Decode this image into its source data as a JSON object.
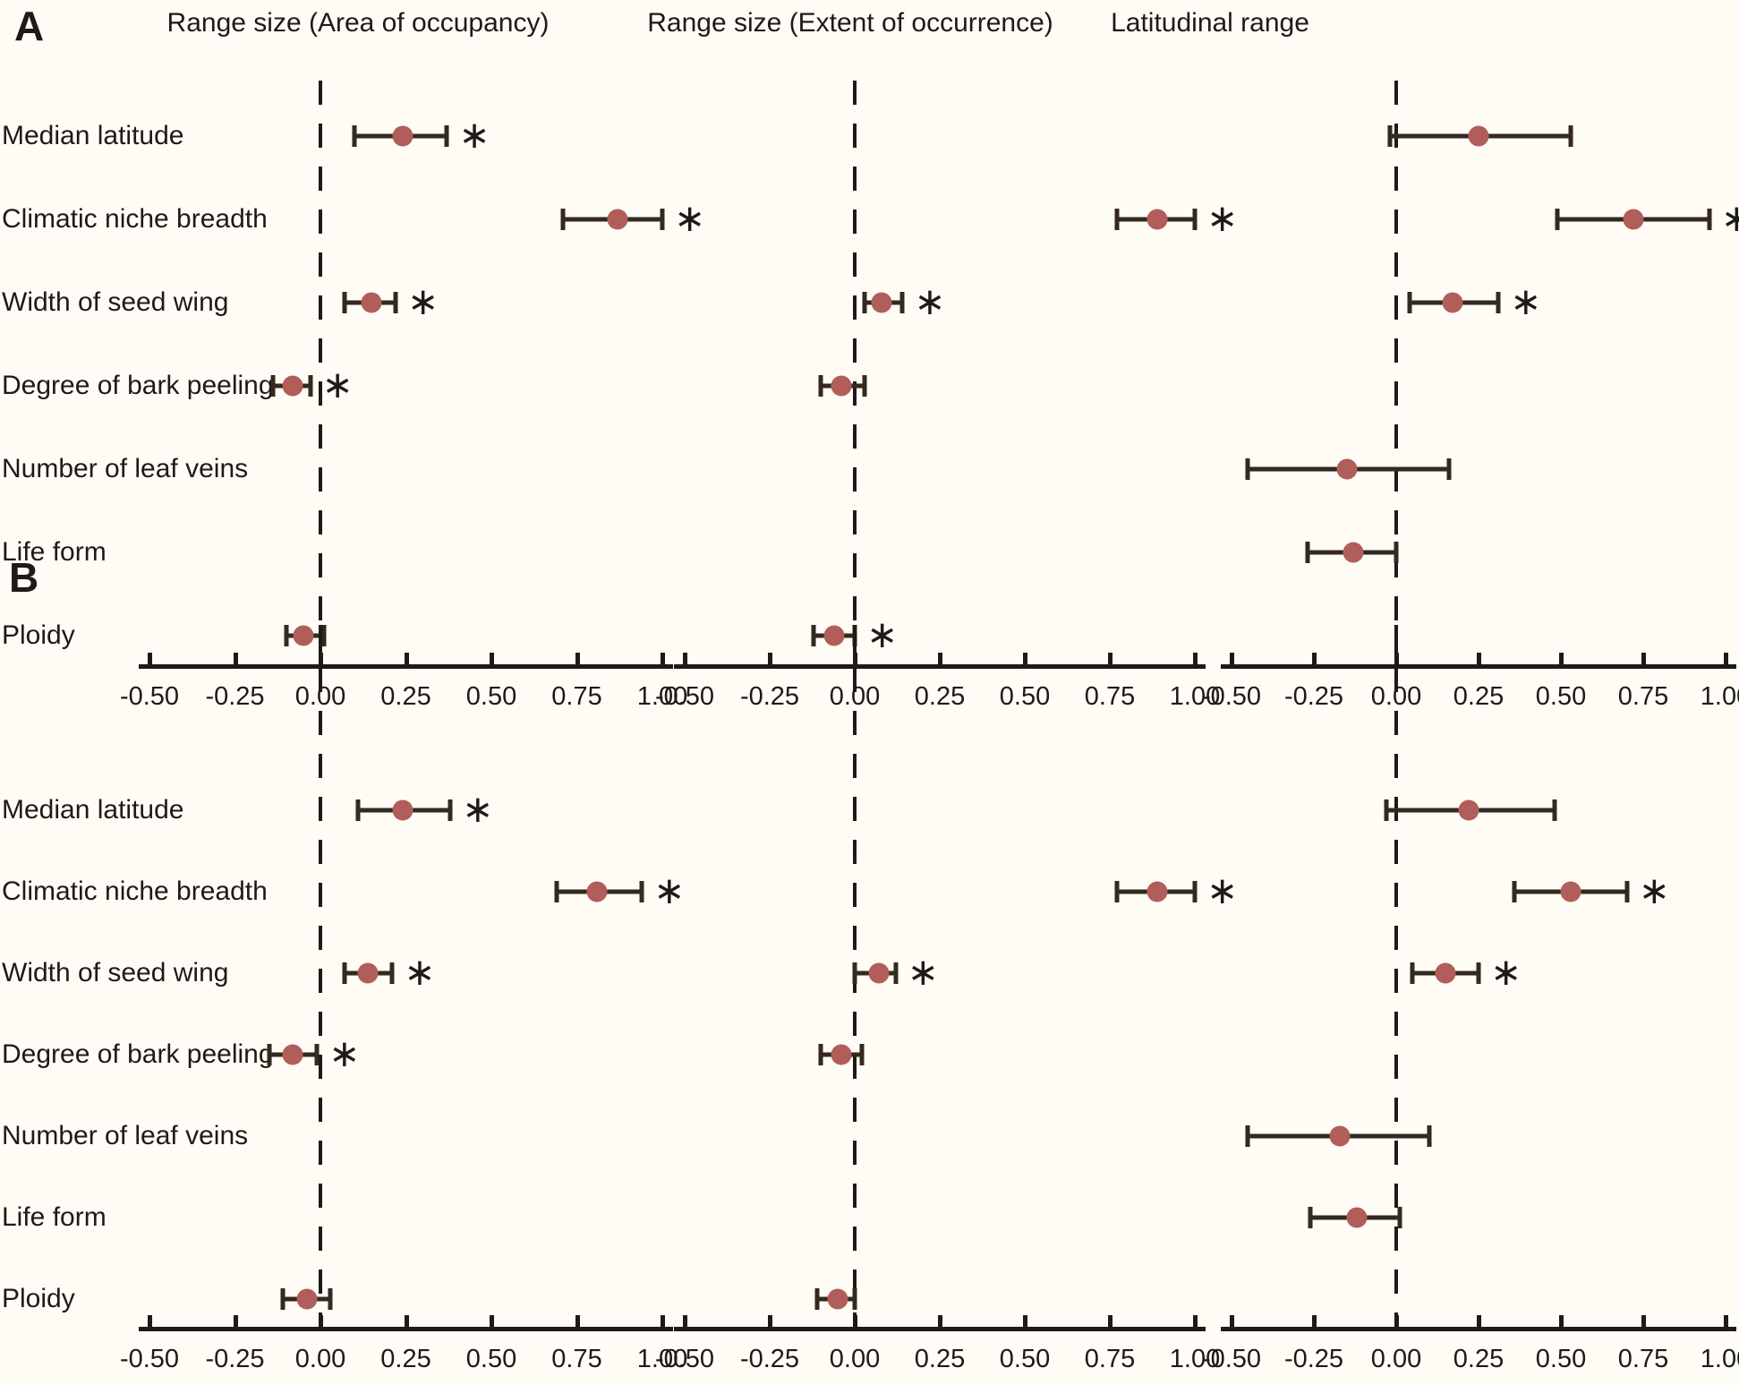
{
  "chart_data": {
    "type": "scatter",
    "subtype": "forest-plot-dot-whisker",
    "description": "Phylogenetic regression coefficient estimates (dots) with confidence-interval whiskers against a dashed zero line; asterisks mark significant effects",
    "title_row": [
      "Range size (Area of occupancy)",
      "Range size (Extent of occurrence)",
      "Latitudinal range"
    ],
    "rows": [
      "Median latitude",
      "Climatic niche breadth",
      "Width of seed wing",
      "Degree of bark peeling",
      "Number of leaf veins",
      "Life form",
      "Ploidy"
    ],
    "axis": {
      "min": -0.5,
      "max": 1.0,
      "tick_labels": [
        "-0.50",
        "-0.25",
        "0.00",
        "0.25",
        "0.50",
        "0.75",
        "1.00"
      ],
      "zero_line": 0.0,
      "grid": false
    },
    "significance_marker": "∗",
    "panels": [
      {
        "label": "A",
        "series": [
          [
            {
              "est": 0.24,
              "lo": 0.1,
              "hi": 0.37,
              "sig": true
            },
            {
              "est": 0.87,
              "lo": 0.71,
              "hi": 1.0,
              "sig": true
            },
            {
              "est": 0.15,
              "lo": 0.07,
              "hi": 0.22,
              "sig": true
            },
            {
              "est": -0.08,
              "lo": -0.14,
              "hi": -0.03,
              "sig": true
            },
            null,
            null,
            {
              "est": -0.05,
              "lo": -0.1,
              "hi": 0.01,
              "sig": false
            }
          ],
          [
            null,
            {
              "est": 0.89,
              "lo": 0.77,
              "hi": 1.0,
              "sig": true
            },
            {
              "est": 0.08,
              "lo": 0.03,
              "hi": 0.14,
              "sig": true
            },
            {
              "est": -0.04,
              "lo": -0.1,
              "hi": 0.03,
              "sig": false
            },
            null,
            null,
            {
              "est": -0.06,
              "lo": -0.12,
              "hi": 0.0,
              "sig": true
            }
          ],
          [
            {
              "est": 0.25,
              "lo": -0.02,
              "hi": 0.53,
              "sig": false
            },
            {
              "est": 0.72,
              "lo": 0.49,
              "hi": 0.95,
              "sig": true
            },
            {
              "est": 0.17,
              "lo": 0.04,
              "hi": 0.31,
              "sig": true
            },
            null,
            {
              "est": -0.15,
              "lo": -0.45,
              "hi": 0.16,
              "sig": false
            },
            {
              "est": -0.13,
              "lo": -0.27,
              "hi": 0.0,
              "sig": false
            },
            null
          ]
        ]
      },
      {
        "label": "B",
        "series": [
          [
            {
              "est": 0.24,
              "lo": 0.11,
              "hi": 0.38,
              "sig": true
            },
            {
              "est": 0.81,
              "lo": 0.69,
              "hi": 0.94,
              "sig": true
            },
            {
              "est": 0.14,
              "lo": 0.07,
              "hi": 0.21,
              "sig": true
            },
            {
              "est": -0.08,
              "lo": -0.15,
              "hi": -0.01,
              "sig": true
            },
            null,
            null,
            {
              "est": -0.04,
              "lo": -0.11,
              "hi": 0.03,
              "sig": false
            }
          ],
          [
            null,
            {
              "est": 0.89,
              "lo": 0.77,
              "hi": 1.0,
              "sig": true
            },
            {
              "est": 0.07,
              "lo": 0.0,
              "hi": 0.12,
              "sig": true
            },
            {
              "est": -0.04,
              "lo": -0.1,
              "hi": 0.02,
              "sig": false
            },
            null,
            null,
            {
              "est": -0.05,
              "lo": -0.11,
              "hi": 0.0,
              "sig": false
            }
          ],
          [
            {
              "est": 0.22,
              "lo": -0.03,
              "hi": 0.48,
              "sig": false
            },
            {
              "est": 0.53,
              "lo": 0.36,
              "hi": 0.7,
              "sig": true
            },
            {
              "est": 0.15,
              "lo": 0.05,
              "hi": 0.25,
              "sig": true
            },
            null,
            {
              "est": -0.17,
              "lo": -0.45,
              "hi": 0.1,
              "sig": false
            },
            {
              "est": -0.12,
              "lo": -0.26,
              "hi": 0.01,
              "sig": false
            },
            null
          ]
        ]
      }
    ],
    "colors": {
      "point": "#b15d59",
      "whisker": "#33291f",
      "axis_and_text": "#1d1a17",
      "background": "#fffcf6"
    },
    "legend": "none"
  }
}
